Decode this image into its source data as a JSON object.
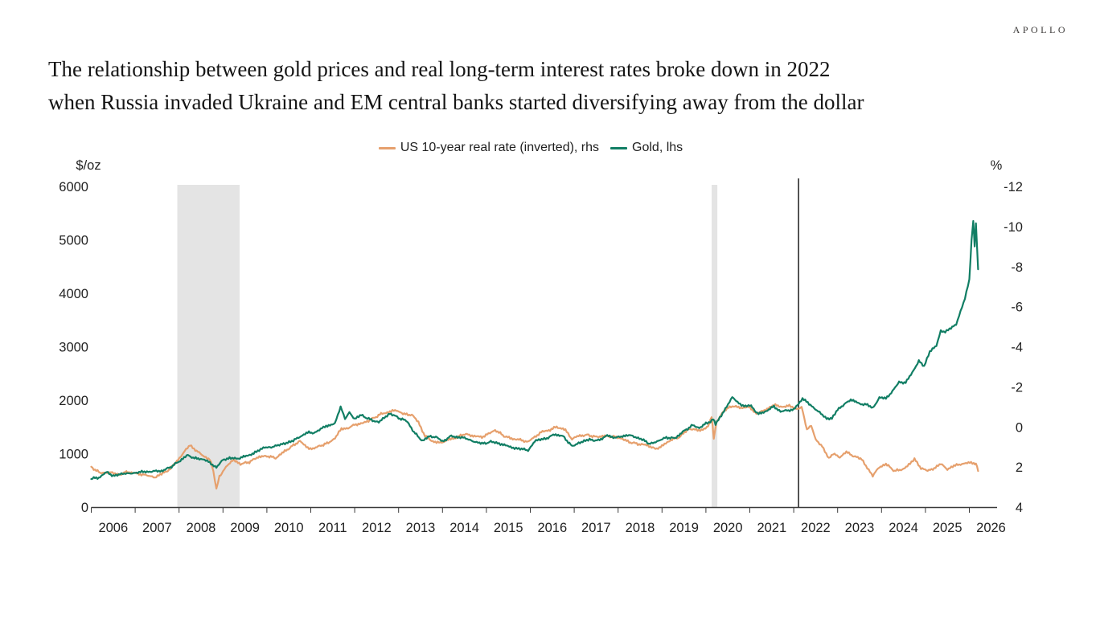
{
  "header": {
    "logo": "APOLLO"
  },
  "title": {
    "line1": "The relationship between gold prices and real long-term interest rates broke down in 2022",
    "line2": "when Russia invaded Ukraine and EM central banks started diversifying away from the dollar"
  },
  "legend": {
    "items": [
      {
        "label": "US 10-year real rate (inverted), rhs",
        "color": "#e6a06d"
      },
      {
        "label": "Gold, lhs",
        "color": "#117e64"
      }
    ]
  },
  "chart_data": {
    "type": "line",
    "title": "The relationship between gold prices and real long-term interest rates broke down in 2022 when Russia invaded Ukraine and EM central banks started diversifying away from the dollar",
    "left_axis": {
      "unit": "$/oz",
      "range": [
        0,
        6000
      ],
      "ticks": [
        0,
        1000,
        2000,
        3000,
        4000,
        5000,
        6000
      ]
    },
    "right_axis": {
      "unit": "%",
      "range": [
        4,
        -12
      ],
      "inverted": true,
      "ticks": [
        -12,
        -10,
        -8,
        -6,
        -4,
        -2,
        0,
        2,
        4
      ]
    },
    "x_axis": {
      "labels": [
        "2006",
        "2007",
        "2008",
        "2009",
        "2010",
        "2011",
        "2012",
        "2013",
        "2014",
        "2015",
        "2016",
        "2017",
        "2018",
        "2019",
        "2020",
        "2021",
        "2022",
        "2023",
        "2024",
        "2025",
        "2026"
      ],
      "range": [
        2006,
        2026.65
      ]
    },
    "grid": false,
    "legend_position": "top-center",
    "band_color": "#e4e4e4",
    "event_line": {
      "year": 2022.11,
      "color": "#2b2b2b"
    },
    "shaded_regions": [
      {
        "from": 2007.96,
        "to": 2009.38
      },
      {
        "from": 2020.13,
        "to": 2020.26
      }
    ],
    "series": [
      {
        "name": "US 10-year real rate (inverted), rhs",
        "axis": "right",
        "color": "#e6a06d",
        "points": [
          [
            2006.0,
            2.0
          ],
          [
            2006.2,
            2.3
          ],
          [
            2006.45,
            2.25
          ],
          [
            2006.6,
            2.4
          ],
          [
            2006.8,
            2.25
          ],
          [
            2007.0,
            2.3
          ],
          [
            2007.2,
            2.4
          ],
          [
            2007.45,
            2.5
          ],
          [
            2007.6,
            2.35
          ],
          [
            2007.8,
            2.1
          ],
          [
            2007.95,
            1.7
          ],
          [
            2008.1,
            1.3
          ],
          [
            2008.25,
            0.9
          ],
          [
            2008.4,
            1.2
          ],
          [
            2008.55,
            1.45
          ],
          [
            2008.7,
            1.6
          ],
          [
            2008.78,
            2.2
          ],
          [
            2008.85,
            3.1
          ],
          [
            2008.92,
            2.5
          ],
          [
            2009.0,
            2.2
          ],
          [
            2009.1,
            1.9
          ],
          [
            2009.25,
            1.65
          ],
          [
            2009.4,
            1.85
          ],
          [
            2009.6,
            1.75
          ],
          [
            2009.8,
            1.5
          ],
          [
            2010.0,
            1.45
          ],
          [
            2010.2,
            1.55
          ],
          [
            2010.35,
            1.3
          ],
          [
            2010.55,
            1.0
          ],
          [
            2010.75,
            0.7
          ],
          [
            2010.9,
            1.0
          ],
          [
            2011.05,
            1.1
          ],
          [
            2011.2,
            0.95
          ],
          [
            2011.4,
            0.8
          ],
          [
            2011.55,
            0.55
          ],
          [
            2011.7,
            0.1
          ],
          [
            2011.85,
            0.05
          ],
          [
            2012.0,
            -0.1
          ],
          [
            2012.2,
            -0.2
          ],
          [
            2012.4,
            -0.4
          ],
          [
            2012.6,
            -0.65
          ],
          [
            2012.8,
            -0.75
          ],
          [
            2012.95,
            -0.85
          ],
          [
            2013.1,
            -0.65
          ],
          [
            2013.3,
            -0.6
          ],
          [
            2013.45,
            -0.25
          ],
          [
            2013.6,
            0.45
          ],
          [
            2013.75,
            0.7
          ],
          [
            2013.95,
            0.8
          ],
          [
            2014.1,
            0.65
          ],
          [
            2014.3,
            0.55
          ],
          [
            2014.5,
            0.35
          ],
          [
            2014.7,
            0.45
          ],
          [
            2014.9,
            0.5
          ],
          [
            2015.05,
            0.35
          ],
          [
            2015.2,
            0.15
          ],
          [
            2015.4,
            0.45
          ],
          [
            2015.6,
            0.6
          ],
          [
            2015.8,
            0.65
          ],
          [
            2015.95,
            0.75
          ],
          [
            2016.1,
            0.5
          ],
          [
            2016.25,
            0.25
          ],
          [
            2016.45,
            0.15
          ],
          [
            2016.6,
            0.0
          ],
          [
            2016.8,
            0.15
          ],
          [
            2016.95,
            0.6
          ],
          [
            2017.1,
            0.45
          ],
          [
            2017.3,
            0.4
          ],
          [
            2017.5,
            0.5
          ],
          [
            2017.7,
            0.45
          ],
          [
            2017.9,
            0.5
          ],
          [
            2018.05,
            0.55
          ],
          [
            2018.25,
            0.75
          ],
          [
            2018.45,
            0.85
          ],
          [
            2018.65,
            0.9
          ],
          [
            2018.85,
            1.1
          ],
          [
            2019.0,
            0.95
          ],
          [
            2019.2,
            0.65
          ],
          [
            2019.4,
            0.5
          ],
          [
            2019.6,
            0.1
          ],
          [
            2019.75,
            0.15
          ],
          [
            2019.9,
            0.15
          ],
          [
            2020.05,
            0.0
          ],
          [
            2020.13,
            -0.55
          ],
          [
            2020.18,
            0.6
          ],
          [
            2020.24,
            -0.25
          ],
          [
            2020.4,
            -0.8
          ],
          [
            2020.6,
            -1.05
          ],
          [
            2020.8,
            -0.95
          ],
          [
            2021.0,
            -1.0
          ],
          [
            2021.15,
            -0.65
          ],
          [
            2021.3,
            -0.8
          ],
          [
            2021.55,
            -1.1
          ],
          [
            2021.7,
            -1.0
          ],
          [
            2021.9,
            -1.05
          ],
          [
            2022.0,
            -0.95
          ],
          [
            2022.11,
            -0.9
          ],
          [
            2022.18,
            -1.0
          ],
          [
            2022.3,
            0.15
          ],
          [
            2022.4,
            -0.05
          ],
          [
            2022.5,
            0.65
          ],
          [
            2022.65,
            0.95
          ],
          [
            2022.8,
            1.6
          ],
          [
            2022.9,
            1.35
          ],
          [
            2023.05,
            1.5
          ],
          [
            2023.2,
            1.25
          ],
          [
            2023.4,
            1.5
          ],
          [
            2023.55,
            1.6
          ],
          [
            2023.8,
            2.45
          ],
          [
            2023.95,
            2.0
          ],
          [
            2024.1,
            1.85
          ],
          [
            2024.3,
            2.2
          ],
          [
            2024.5,
            2.1
          ],
          [
            2024.65,
            1.85
          ],
          [
            2024.75,
            1.6
          ],
          [
            2024.9,
            2.05
          ],
          [
            2025.05,
            2.2
          ],
          [
            2025.2,
            2.05
          ],
          [
            2025.35,
            1.85
          ],
          [
            2025.5,
            2.1
          ],
          [
            2025.65,
            1.95
          ],
          [
            2025.8,
            1.85
          ],
          [
            2025.95,
            1.8
          ],
          [
            2026.1,
            1.8
          ],
          [
            2026.15,
            1.85
          ],
          [
            2026.2,
            2.2
          ]
        ]
      },
      {
        "name": "Gold, lhs",
        "axis": "left",
        "color": "#117e64",
        "points": [
          [
            2006.0,
            530
          ],
          [
            2006.2,
            560
          ],
          [
            2006.35,
            655
          ],
          [
            2006.5,
            590
          ],
          [
            2006.75,
            620
          ],
          [
            2007.0,
            645
          ],
          [
            2007.3,
            665
          ],
          [
            2007.6,
            675
          ],
          [
            2007.8,
            745
          ],
          [
            2008.0,
            855
          ],
          [
            2008.2,
            975
          ],
          [
            2008.35,
            915
          ],
          [
            2008.55,
            895
          ],
          [
            2008.7,
            830
          ],
          [
            2008.85,
            745
          ],
          [
            2009.0,
            880
          ],
          [
            2009.15,
            925
          ],
          [
            2009.3,
            900
          ],
          [
            2009.5,
            950
          ],
          [
            2009.7,
            1000
          ],
          [
            2009.95,
            1130
          ],
          [
            2010.1,
            1110
          ],
          [
            2010.35,
            1185
          ],
          [
            2010.6,
            1240
          ],
          [
            2010.9,
            1390
          ],
          [
            2011.1,
            1395
          ],
          [
            2011.35,
            1515
          ],
          [
            2011.55,
            1560
          ],
          [
            2011.68,
            1880
          ],
          [
            2011.78,
            1650
          ],
          [
            2011.88,
            1770
          ],
          [
            2012.0,
            1655
          ],
          [
            2012.15,
            1720
          ],
          [
            2012.35,
            1640
          ],
          [
            2012.55,
            1585
          ],
          [
            2012.8,
            1755
          ],
          [
            2013.0,
            1670
          ],
          [
            2013.2,
            1605
          ],
          [
            2013.35,
            1400
          ],
          [
            2013.55,
            1235
          ],
          [
            2013.7,
            1325
          ],
          [
            2013.85,
            1315
          ],
          [
            2014.0,
            1225
          ],
          [
            2014.2,
            1330
          ],
          [
            2014.5,
            1290
          ],
          [
            2014.75,
            1225
          ],
          [
            2014.9,
            1185
          ],
          [
            2015.1,
            1220
          ],
          [
            2015.35,
            1180
          ],
          [
            2015.55,
            1125
          ],
          [
            2015.8,
            1085
          ],
          [
            2015.95,
            1060
          ],
          [
            2016.1,
            1235
          ],
          [
            2016.35,
            1280
          ],
          [
            2016.55,
            1360
          ],
          [
            2016.75,
            1325
          ],
          [
            2016.95,
            1135
          ],
          [
            2017.1,
            1205
          ],
          [
            2017.35,
            1260
          ],
          [
            2017.55,
            1245
          ],
          [
            2017.75,
            1340
          ],
          [
            2017.95,
            1295
          ],
          [
            2018.1,
            1330
          ],
          [
            2018.3,
            1345
          ],
          [
            2018.55,
            1265
          ],
          [
            2018.7,
            1185
          ],
          [
            2018.95,
            1250
          ],
          [
            2019.1,
            1300
          ],
          [
            2019.3,
            1290
          ],
          [
            2019.5,
            1425
          ],
          [
            2019.7,
            1530
          ],
          [
            2019.85,
            1485
          ],
          [
            2020.0,
            1560
          ],
          [
            2020.1,
            1585
          ],
          [
            2020.17,
            1640
          ],
          [
            2020.22,
            1560
          ],
          [
            2020.35,
            1720
          ],
          [
            2020.6,
            2050
          ],
          [
            2020.75,
            1945
          ],
          [
            2020.9,
            1880
          ],
          [
            2021.0,
            1905
          ],
          [
            2021.2,
            1740
          ],
          [
            2021.4,
            1805
          ],
          [
            2021.55,
            1885
          ],
          [
            2021.7,
            1790
          ],
          [
            2021.85,
            1805
          ],
          [
            2022.0,
            1830
          ],
          [
            2022.11,
            1930
          ],
          [
            2022.2,
            2040
          ],
          [
            2022.35,
            1925
          ],
          [
            2022.5,
            1835
          ],
          [
            2022.62,
            1745
          ],
          [
            2022.75,
            1645
          ],
          [
            2022.87,
            1665
          ],
          [
            2023.0,
            1835
          ],
          [
            2023.12,
            1895
          ],
          [
            2023.3,
            2015
          ],
          [
            2023.5,
            1935
          ],
          [
            2023.65,
            1920
          ],
          [
            2023.8,
            1855
          ],
          [
            2023.95,
            2045
          ],
          [
            2024.1,
            2035
          ],
          [
            2024.25,
            2170
          ],
          [
            2024.4,
            2335
          ],
          [
            2024.55,
            2335
          ],
          [
            2024.7,
            2510
          ],
          [
            2024.85,
            2745
          ],
          [
            2024.97,
            2625
          ],
          [
            2025.1,
            2905
          ],
          [
            2025.25,
            3030
          ],
          [
            2025.35,
            3305
          ],
          [
            2025.45,
            3285
          ],
          [
            2025.55,
            3345
          ],
          [
            2025.7,
            3410
          ],
          [
            2025.8,
            3655
          ],
          [
            2025.9,
            3900
          ],
          [
            2026.0,
            4250
          ],
          [
            2026.05,
            5000
          ],
          [
            2026.09,
            5350
          ],
          [
            2026.12,
            4870
          ],
          [
            2026.15,
            5320
          ],
          [
            2026.2,
            4450
          ]
        ]
      }
    ]
  }
}
